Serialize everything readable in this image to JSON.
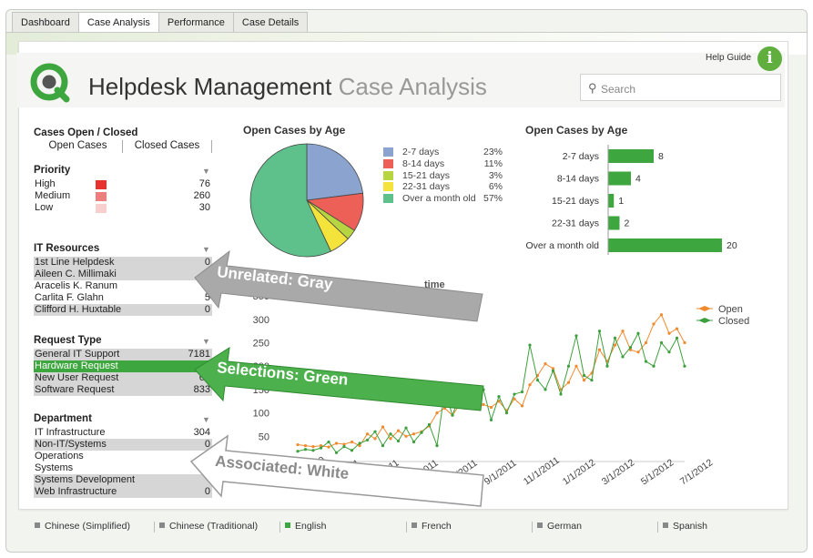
{
  "tabs": [
    {
      "label": "Dashboard"
    },
    {
      "label": "Case Analysis",
      "active": true
    },
    {
      "label": "Performance"
    },
    {
      "label": "Case Details"
    }
  ],
  "header": {
    "title_main": "Helpdesk Management",
    "title_sub": "Case Analysis",
    "help_label": "Help Guide",
    "info_glyph": "i",
    "search_placeholder": "Search"
  },
  "open_closed": {
    "title": "Cases Open / Closed",
    "items": [
      "Open Cases",
      "Closed Cases"
    ]
  },
  "priority": {
    "title": "Priority",
    "rows": [
      {
        "label": "High",
        "value": "76",
        "color": "#e8322d"
      },
      {
        "label": "Medium",
        "value": "260",
        "color": "#ee7e7c"
      },
      {
        "label": "Low",
        "value": "30",
        "color": "#f8cfcd"
      }
    ]
  },
  "it_resources": {
    "title": "IT Resources",
    "rows": [
      {
        "label": "1st Line Helpdesk",
        "value": "0",
        "state": "gray"
      },
      {
        "label": "Aileen C. Millimaki",
        "value": "",
        "state": "gray"
      },
      {
        "label": "Aracelis K. Ranum",
        "value": "0",
        "state": "white"
      },
      {
        "label": "Carlita F. Glahn",
        "value": "5",
        "state": "white"
      },
      {
        "label": "Clifford H. Huxtable",
        "value": "0",
        "state": "gray"
      }
    ]
  },
  "request_type": {
    "title": "Request Type",
    "rows": [
      {
        "label": "General IT Support",
        "value": "7181",
        "state": "gray"
      },
      {
        "label": "Hardware Request",
        "value": "",
        "state": "green"
      },
      {
        "label": "New User Request",
        "value": "65",
        "state": "gray"
      },
      {
        "label": "Software Request",
        "value": "833",
        "state": "gray"
      }
    ]
  },
  "department": {
    "title": "Department",
    "rows": [
      {
        "label": "IT Infrastructure",
        "value": "304",
        "state": "white"
      },
      {
        "label": "Non-IT/Systems",
        "value": "0",
        "state": "gray"
      },
      {
        "label": "Operations",
        "value": "",
        "state": "white"
      },
      {
        "label": "Systems",
        "value": "",
        "state": "white"
      },
      {
        "label": "Systems Development",
        "value": "",
        "state": "gray"
      },
      {
        "label": "Web Infrastructure",
        "value": "0",
        "state": "gray"
      }
    ]
  },
  "annotations": {
    "unrelated": "Unrelated: Gray",
    "selections": "Selections: Green",
    "associated": "Associated: White",
    "partial_title": "time"
  },
  "chart_data": [
    {
      "type": "pie",
      "title": "Open Cases by Age",
      "categories": [
        "2-7 days",
        "8-14 days",
        "15-21 days",
        "22-31 days",
        "Over a month old"
      ],
      "values": [
        23,
        11,
        3,
        6,
        57
      ],
      "value_labels": [
        "23%",
        "11%",
        "3%",
        "6%",
        "57%"
      ],
      "colors": [
        "#8aa4cf",
        "#ec6058",
        "#b7d540",
        "#f3e33a",
        "#5ec08a"
      ]
    },
    {
      "type": "bar",
      "orientation": "horizontal",
      "title": "Open Cases by Age",
      "categories": [
        "2-7 days",
        "8-14 days",
        "15-21 days",
        "22-31 days",
        "Over a month old"
      ],
      "values": [
        8,
        4,
        1,
        2,
        20
      ],
      "color": "#3ea63e"
    },
    {
      "type": "line",
      "title": "",
      "y_ticks": [
        50,
        100,
        150,
        200,
        250,
        300,
        350
      ],
      "ylim": [
        0,
        360
      ],
      "x_ticks": [
        "11/1/2010",
        "1/1/2011",
        "3/1/2011",
        "5/1/2011",
        "7/1/2011",
        "9/1/2011",
        "11/1/2011",
        "1/1/2012",
        "3/1/2012",
        "5/1/2012",
        "7/1/2012"
      ],
      "series": [
        {
          "name": "Open",
          "color": "#ef8a2e",
          "values": [
            32,
            30,
            28,
            30,
            27,
            35,
            33,
            38,
            30,
            55,
            45,
            70,
            45,
            62,
            50,
            55,
            60,
            72,
            100,
            110,
            95,
            120,
            130,
            110,
            118,
            112,
            125,
            105,
            130,
            115,
            160,
            180,
            205,
            195,
            150,
            165,
            200,
            170,
            185,
            235,
            210,
            245,
            275,
            235,
            230,
            250,
            290,
            310,
            270,
            280,
            250
          ]
        },
        {
          "name": "Closed",
          "color": "#3e9f3e",
          "values": [
            18,
            22,
            20,
            25,
            38,
            15,
            28,
            20,
            35,
            42,
            60,
            30,
            55,
            40,
            68,
            38,
            58,
            75,
            30,
            148,
            95,
            140,
            120,
            115,
            150,
            85,
            135,
            100,
            140,
            145,
            245,
            170,
            150,
            190,
            140,
            200,
            265,
            180,
            170,
            275,
            200,
            260,
            220,
            240,
            270,
            210,
            200,
            250,
            230,
            260,
            200
          ]
        }
      ]
    }
  ],
  "languages": [
    {
      "label": "Chinese (Simplified)",
      "active": false
    },
    {
      "label": "Chinese (Traditional)",
      "active": false
    },
    {
      "label": "English",
      "active": true
    },
    {
      "label": "French",
      "active": false
    },
    {
      "label": "German",
      "active": false
    },
    {
      "label": "Spanish",
      "active": false
    }
  ]
}
